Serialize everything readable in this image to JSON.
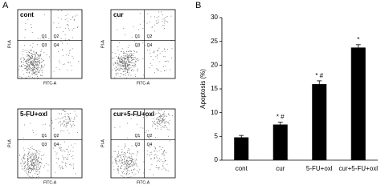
{
  "panel_a": {
    "label": "A",
    "plots": [
      {
        "name": "cont",
        "quadrants": [
          "Q1",
          "Q2",
          "Q3",
          "Q4"
        ],
        "x_label": "FITC-A",
        "y_label": "PI-A"
      },
      {
        "name": "cur",
        "quadrants": [
          "Q1",
          "Q2",
          "Q3",
          "Q4"
        ],
        "x_label": "FITC-A",
        "y_label": "PI-A"
      },
      {
        "name": "5-FU+oxl",
        "quadrants": [
          "Q1",
          "Q2",
          "Q3",
          "Q4"
        ],
        "x_label": "FITC-A",
        "y_label": "PI-A"
      },
      {
        "name": "cur+5-FU+oxl",
        "quadrants": [
          "Q1",
          "Q2",
          "Q3",
          "Q4"
        ],
        "x_label": "FITC-A",
        "y_label": "PI-A"
      }
    ]
  },
  "chart_data": {
    "type": "bar",
    "panel_label": "B",
    "y_label": "Apoptosis (%)",
    "categories": [
      "cont",
      "cur",
      "5-FU+oxl",
      "cur+5-FU+oxl"
    ],
    "values": [
      4.8,
      7.5,
      16.0,
      23.7
    ],
    "errors": [
      0.4,
      0.5,
      0.7,
      0.6
    ],
    "annotations": [
      null,
      "* #",
      "* #",
      "*"
    ],
    "color": "#000000",
    "ylim": [
      0,
      30
    ],
    "yticks": [
      0,
      5,
      10,
      15,
      20,
      25,
      30
    ]
  }
}
